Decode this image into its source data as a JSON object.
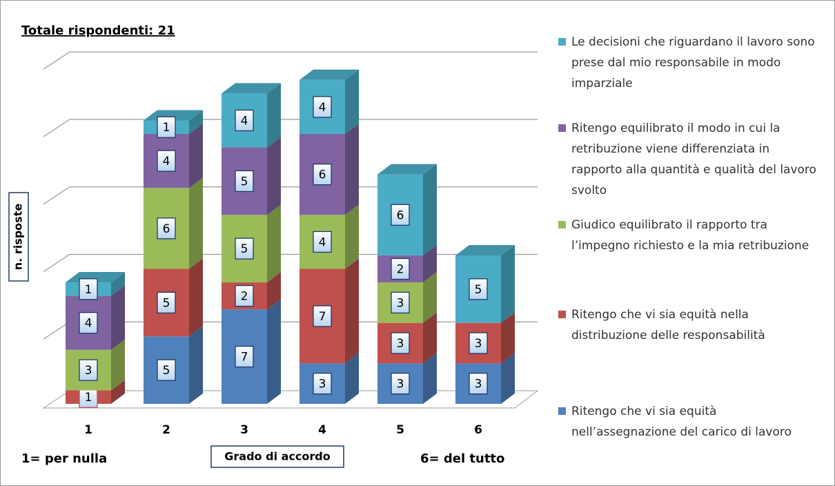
{
  "chart_data": {
    "type": "bar3d_stacked",
    "title": "Totale rispondenti: 21",
    "y_label": "n. risposte",
    "x_label": "Grado di accordo",
    "annotations": [
      "1= per nulla",
      "6= del tutto"
    ],
    "categories": [
      "1",
      "2",
      "3",
      "4",
      "5",
      "6"
    ],
    "ylim": [
      0,
      25
    ],
    "yticks": [
      0,
      5,
      10,
      15,
      20,
      25
    ],
    "grid": true,
    "series": [
      {
        "name": "Ritengo che vi sia equità nell’assegnazione del carico di lavoro",
        "color": "#4f81bd",
        "values": [
          0,
          5,
          7,
          3,
          3,
          3
        ]
      },
      {
        "name": "Ritengo che vi sia equità nella distribuzione delle responsabilità",
        "color": "#c0504d",
        "values": [
          1,
          5,
          2,
          7,
          3,
          3
        ]
      },
      {
        "name": "Giudico equilibrato il rapporto tra l’impegno richiesto e la mia retribuzione",
        "color": "#9bbb59",
        "values": [
          3,
          6,
          5,
          4,
          3,
          0
        ]
      },
      {
        "name": "Ritengo equilibrato il modo in cui la retribuzione viene differenziata in rapporto alla quantità e qualità del lavoro svolto",
        "color": "#8064a2",
        "values": [
          4,
          4,
          5,
          6,
          2,
          0
        ]
      },
      {
        "name": "Le decisioni che riguardano il lavoro sono prese dal mio responsabile in modo imparziale",
        "color": "#4bacc6",
        "values": [
          1,
          1,
          4,
          4,
          6,
          5
        ]
      }
    ]
  }
}
